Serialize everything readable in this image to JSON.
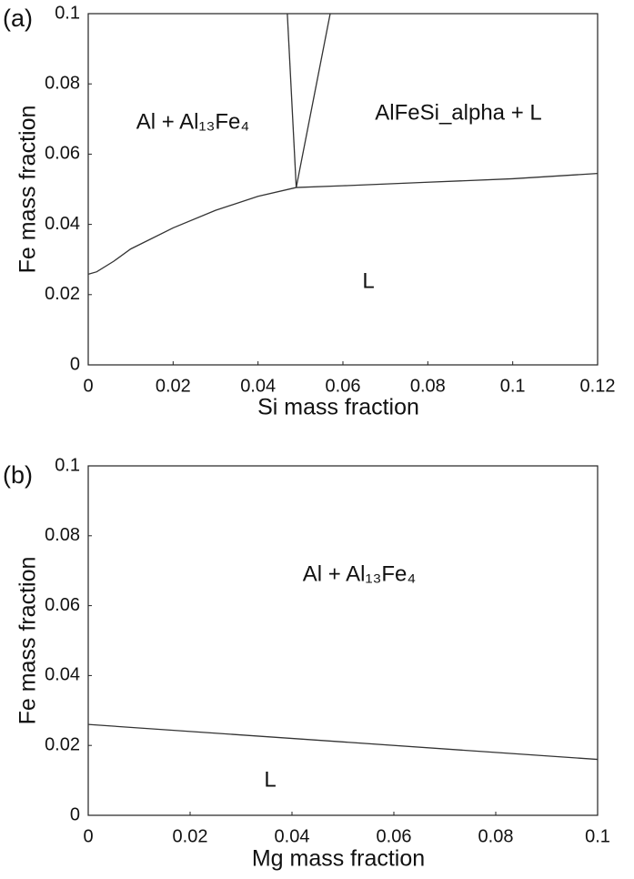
{
  "chart_data": [
    {
      "type": "line",
      "panel_label": "(a)",
      "xlabel": "Si mass fraction",
      "ylabel": "Fe mass fraction",
      "xlim": [
        0,
        0.12
      ],
      "ylim": [
        0,
        0.1
      ],
      "xticks": [
        0,
        0.02,
        0.04,
        0.06,
        0.08,
        0.1,
        0.12
      ],
      "yticks": [
        0,
        0.02,
        0.04,
        0.06,
        0.08,
        0.1
      ],
      "color": "#333333",
      "series": [
        {
          "x": [
            0,
            0.002,
            0.006,
            0.01,
            0.02,
            0.03,
            0.04,
            0.049
          ],
          "values": [
            0.0258,
            0.0265,
            0.0295,
            0.033,
            0.039,
            0.044,
            0.048,
            0.0505
          ]
        },
        {
          "x": [
            0.049,
            0.06,
            0.08,
            0.1,
            0.12
          ],
          "values": [
            0.0505,
            0.051,
            0.052,
            0.053,
            0.0545
          ]
        },
        {
          "x": [
            0.049,
            0.0469
          ],
          "values": [
            0.0505,
            0.1
          ]
        },
        {
          "x": [
            0.049,
            0.057
          ],
          "values": [
            0.0505,
            0.1
          ]
        }
      ],
      "annotations": [
        {
          "text": "Al + Al₁₃Fe₄"
        },
        {
          "text": "AlFeSi_alpha + L"
        },
        {
          "text": "L"
        }
      ]
    },
    {
      "type": "line",
      "panel_label": "(b)",
      "xlabel": "Mg mass fraction",
      "ylabel": "Fe mass fraction",
      "xlim": [
        0,
        0.1
      ],
      "ylim": [
        0,
        0.1
      ],
      "xticks": [
        0,
        0.02,
        0.04,
        0.06,
        0.08,
        0.1
      ],
      "yticks": [
        0,
        0.02,
        0.04,
        0.06,
        0.08,
        0.1
      ],
      "color": "#333333",
      "series": [
        {
          "x": [
            0,
            0.1
          ],
          "values": [
            0.026,
            0.016
          ]
        }
      ],
      "annotations": [
        {
          "text": "Al + Al₁₃Fe₄"
        },
        {
          "text": "L"
        }
      ]
    }
  ]
}
